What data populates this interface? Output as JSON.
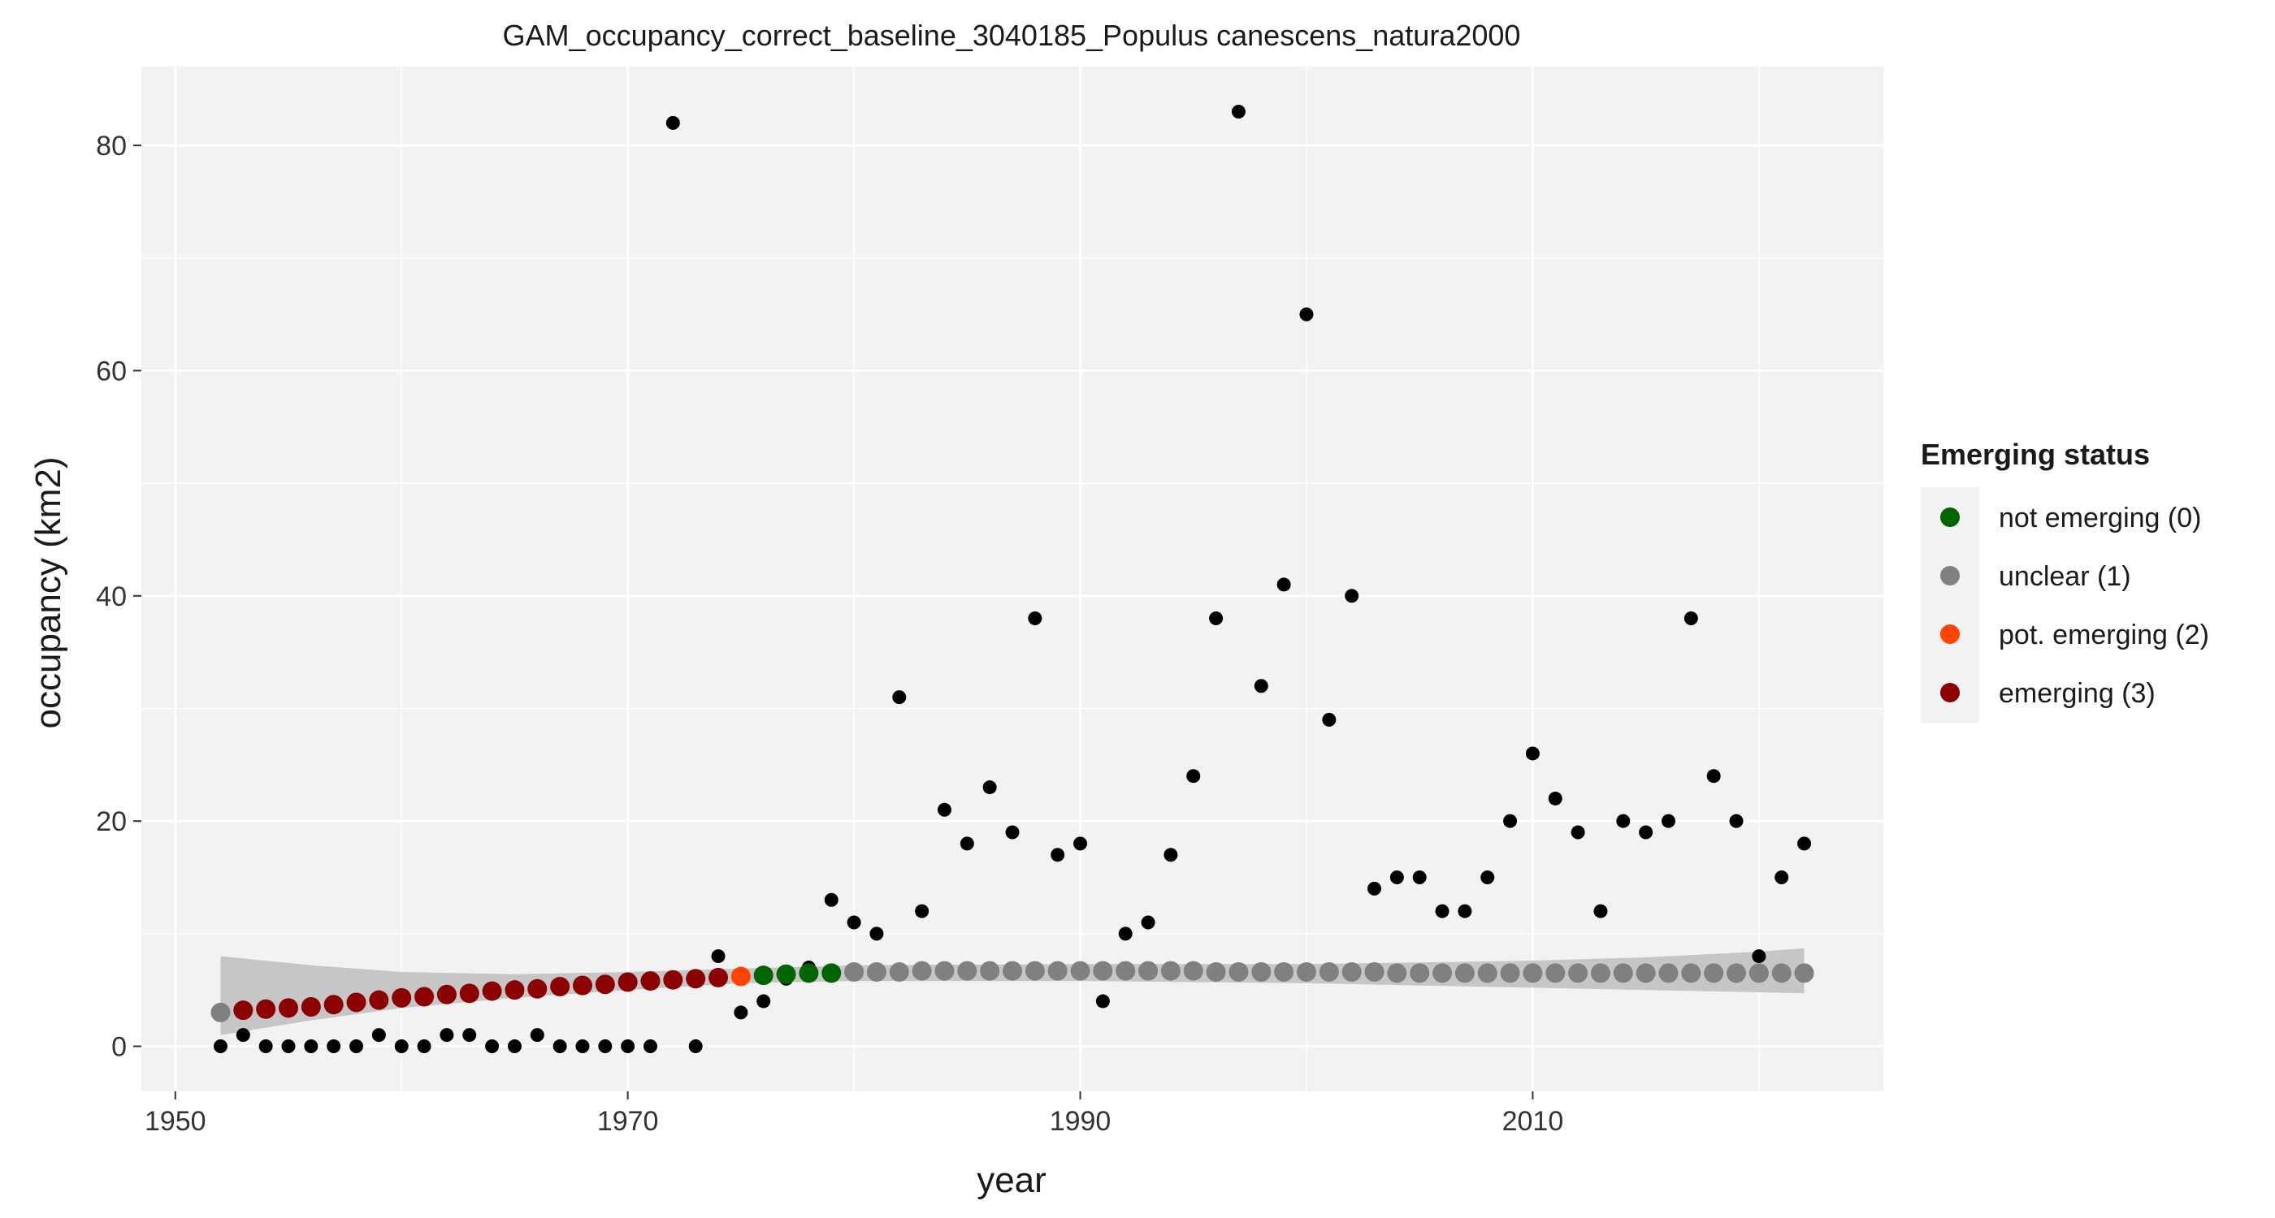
{
  "chart_data": {
    "type": "scatter",
    "title": "GAM_occupancy_correct_baseline_3040185_Populus canescens_natura2000",
    "xlabel": "year",
    "ylabel": "occupancy (km2)",
    "xlim": [
      1948.5,
      2025.5
    ],
    "ylim": [
      -4,
      87
    ],
    "x_ticks": [
      1950,
      1970,
      1990,
      2010
    ],
    "y_ticks": [
      0,
      20,
      40,
      60,
      80
    ],
    "grid": true,
    "legend": {
      "title": "Emerging status",
      "position": "right",
      "entries": [
        {
          "label": "not emerging (0)",
          "color": "#006400"
        },
        {
          "label": "unclear (1)",
          "color": "#808080"
        },
        {
          "label": "pot. emerging (2)",
          "color": "#FF4500"
        },
        {
          "label": "emerging (3)",
          "color": "#8B0000"
        }
      ]
    },
    "colors": {
      "panel_bg": "#F2F2F2",
      "grid": "#FFFFFF",
      "observed": "#000000",
      "ribbon": "#BEBEBE"
    },
    "observed": {
      "x": [
        1952,
        1953,
        1954,
        1955,
        1956,
        1957,
        1958,
        1959,
        1960,
        1961,
        1962,
        1963,
        1964,
        1965,
        1966,
        1967,
        1968,
        1969,
        1970,
        1971,
        1972,
        1973,
        1974,
        1975,
        1976,
        1977,
        1978,
        1979,
        1980,
        1981,
        1982,
        1983,
        1984,
        1985,
        1986,
        1987,
        1988,
        1989,
        1990,
        1991,
        1992,
        1993,
        1994,
        1995,
        1996,
        1997,
        1998,
        1999,
        2000,
        2001,
        2002,
        2003,
        2004,
        2005,
        2006,
        2007,
        2008,
        2009,
        2010,
        2011,
        2012,
        2013,
        2014,
        2015,
        2016,
        2017,
        2018,
        2019,
        2020,
        2021,
        2022
      ],
      "y": [
        0,
        1,
        0,
        0,
        0,
        0,
        0,
        1,
        0,
        0,
        1,
        1,
        0,
        0,
        1,
        0,
        0,
        0,
        0,
        0,
        82,
        0,
        8,
        3,
        4,
        6,
        7,
        13,
        11,
        10,
        31,
        12,
        21,
        18,
        23,
        19,
        38,
        17,
        18,
        4,
        10,
        11,
        17,
        24,
        38,
        83,
        32,
        41,
        65,
        29,
        40,
        14,
        15,
        15,
        12,
        12,
        15,
        20,
        26,
        22,
        19,
        12,
        20,
        19,
        20,
        38,
        24,
        20,
        8,
        15,
        18
      ]
    },
    "fitted": {
      "x": [
        1952,
        1953,
        1954,
        1955,
        1956,
        1957,
        1958,
        1959,
        1960,
        1961,
        1962,
        1963,
        1964,
        1965,
        1966,
        1967,
        1968,
        1969,
        1970,
        1971,
        1972,
        1973,
        1974,
        1975,
        1976,
        1977,
        1978,
        1979,
        1980,
        1981,
        1982,
        1983,
        1984,
        1985,
        1986,
        1987,
        1988,
        1989,
        1990,
        1991,
        1992,
        1993,
        1994,
        1995,
        1996,
        1997,
        1998,
        1999,
        2000,
        2001,
        2002,
        2003,
        2004,
        2005,
        2006,
        2007,
        2008,
        2009,
        2010,
        2011,
        2012,
        2013,
        2014,
        2015,
        2016,
        2017,
        2018,
        2019,
        2020,
        2021,
        2022
      ],
      "y": [
        3.0,
        3.2,
        3.3,
        3.4,
        3.5,
        3.7,
        3.9,
        4.1,
        4.3,
        4.4,
        4.6,
        4.7,
        4.9,
        5.0,
        5.1,
        5.3,
        5.4,
        5.5,
        5.7,
        5.8,
        5.9,
        6.0,
        6.1,
        6.2,
        6.3,
        6.4,
        6.5,
        6.5,
        6.6,
        6.6,
        6.6,
        6.7,
        6.7,
        6.7,
        6.7,
        6.7,
        6.7,
        6.7,
        6.7,
        6.7,
        6.7,
        6.7,
        6.7,
        6.7,
        6.6,
        6.6,
        6.6,
        6.6,
        6.6,
        6.6,
        6.6,
        6.6,
        6.5,
        6.5,
        6.5,
        6.5,
        6.5,
        6.5,
        6.5,
        6.5,
        6.5,
        6.5,
        6.5,
        6.5,
        6.5,
        6.5,
        6.5,
        6.5,
        6.5,
        6.5,
        6.5
      ],
      "status": [
        1,
        3,
        3,
        3,
        3,
        3,
        3,
        3,
        3,
        3,
        3,
        3,
        3,
        3,
        3,
        3,
        3,
        3,
        3,
        3,
        3,
        3,
        3,
        2,
        0,
        0,
        0,
        0,
        1,
        1,
        1,
        1,
        1,
        1,
        1,
        1,
        1,
        1,
        1,
        1,
        1,
        1,
        1,
        1,
        1,
        1,
        1,
        1,
        1,
        1,
        1,
        1,
        1,
        1,
        1,
        1,
        1,
        1,
        1,
        1,
        1,
        1,
        1,
        1,
        1,
        1,
        1,
        1,
        1,
        1,
        1
      ]
    },
    "ribbon": {
      "x": [
        1952,
        1956,
        1960,
        1965,
        1970,
        1975,
        1980,
        1990,
        2000,
        2010,
        2015,
        2020,
        2022
      ],
      "lower": [
        1.0,
        2.3,
        3.4,
        4.3,
        5.0,
        5.6,
        5.8,
        5.8,
        5.6,
        5.2,
        5.0,
        4.8,
        4.7
      ],
      "upper": [
        8.0,
        7.2,
        6.6,
        6.4,
        6.6,
        6.9,
        7.2,
        7.3,
        7.3,
        7.6,
        7.9,
        8.4,
        8.7
      ]
    }
  }
}
